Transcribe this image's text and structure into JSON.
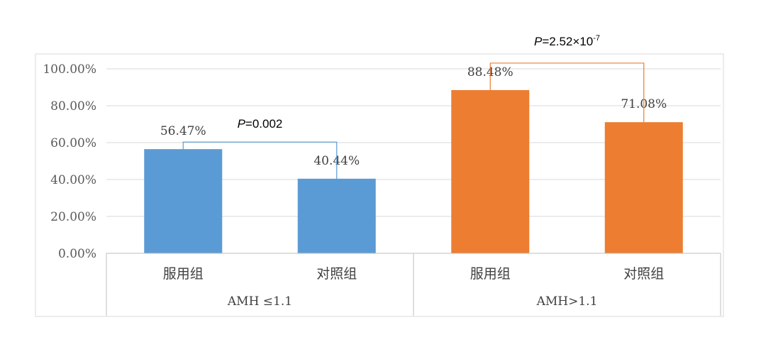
{
  "chart_data": {
    "type": "bar",
    "title": "",
    "xlabel": "",
    "ylabel": "",
    "ylim": [
      0,
      100
    ],
    "y_ticks": [
      "0.00%",
      "20.00%",
      "40.00%",
      "60.00%",
      "80.00%",
      "100.00%"
    ],
    "y_tick_values": [
      0,
      20,
      40,
      60,
      80,
      100
    ],
    "grid": true,
    "legend": "none",
    "groups": [
      {
        "label": "AMH ≤1.1",
        "color": "#5B9BD5",
        "bars": [
          {
            "category": "服用组",
            "value": 56.47,
            "label": "56.47%"
          },
          {
            "category": "对照组",
            "value": 40.44,
            "label": "40.44%"
          }
        ],
        "pvalue": {
          "italic": "P",
          "text": "=0.002",
          "sup": ""
        }
      },
      {
        "label": "AMH>1.1",
        "color": "#ED7D31",
        "bars": [
          {
            "category": "服用组",
            "value": 88.48,
            "label": "88.48%"
          },
          {
            "category": "对照组",
            "value": 71.08,
            "label": "71.08%"
          }
        ],
        "pvalue": {
          "italic": "P",
          "text": "=2.52×10",
          "sup": "-7"
        }
      }
    ]
  }
}
